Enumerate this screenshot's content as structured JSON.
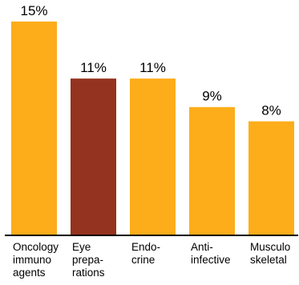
{
  "chart_data": {
    "type": "bar",
    "categories": [
      [
        "Oncology",
        "immuno",
        "agents"
      ],
      [
        "Eye",
        "prepa-",
        "rations"
      ],
      [
        "Endo-",
        "crine"
      ],
      [
        "Anti-",
        "infective"
      ],
      [
        "Musculo",
        "skeletal"
      ]
    ],
    "values": [
      15,
      11,
      11,
      9,
      8
    ],
    "value_labels": [
      "15%",
      "11%",
      "11%",
      "9%",
      "8%"
    ],
    "ylim": [
      0,
      15.5
    ],
    "grid": false,
    "colors": {
      "default": "#FDAD1A",
      "highlight": "#94331F",
      "axis": "#000000"
    },
    "highlight_index": 1
  }
}
